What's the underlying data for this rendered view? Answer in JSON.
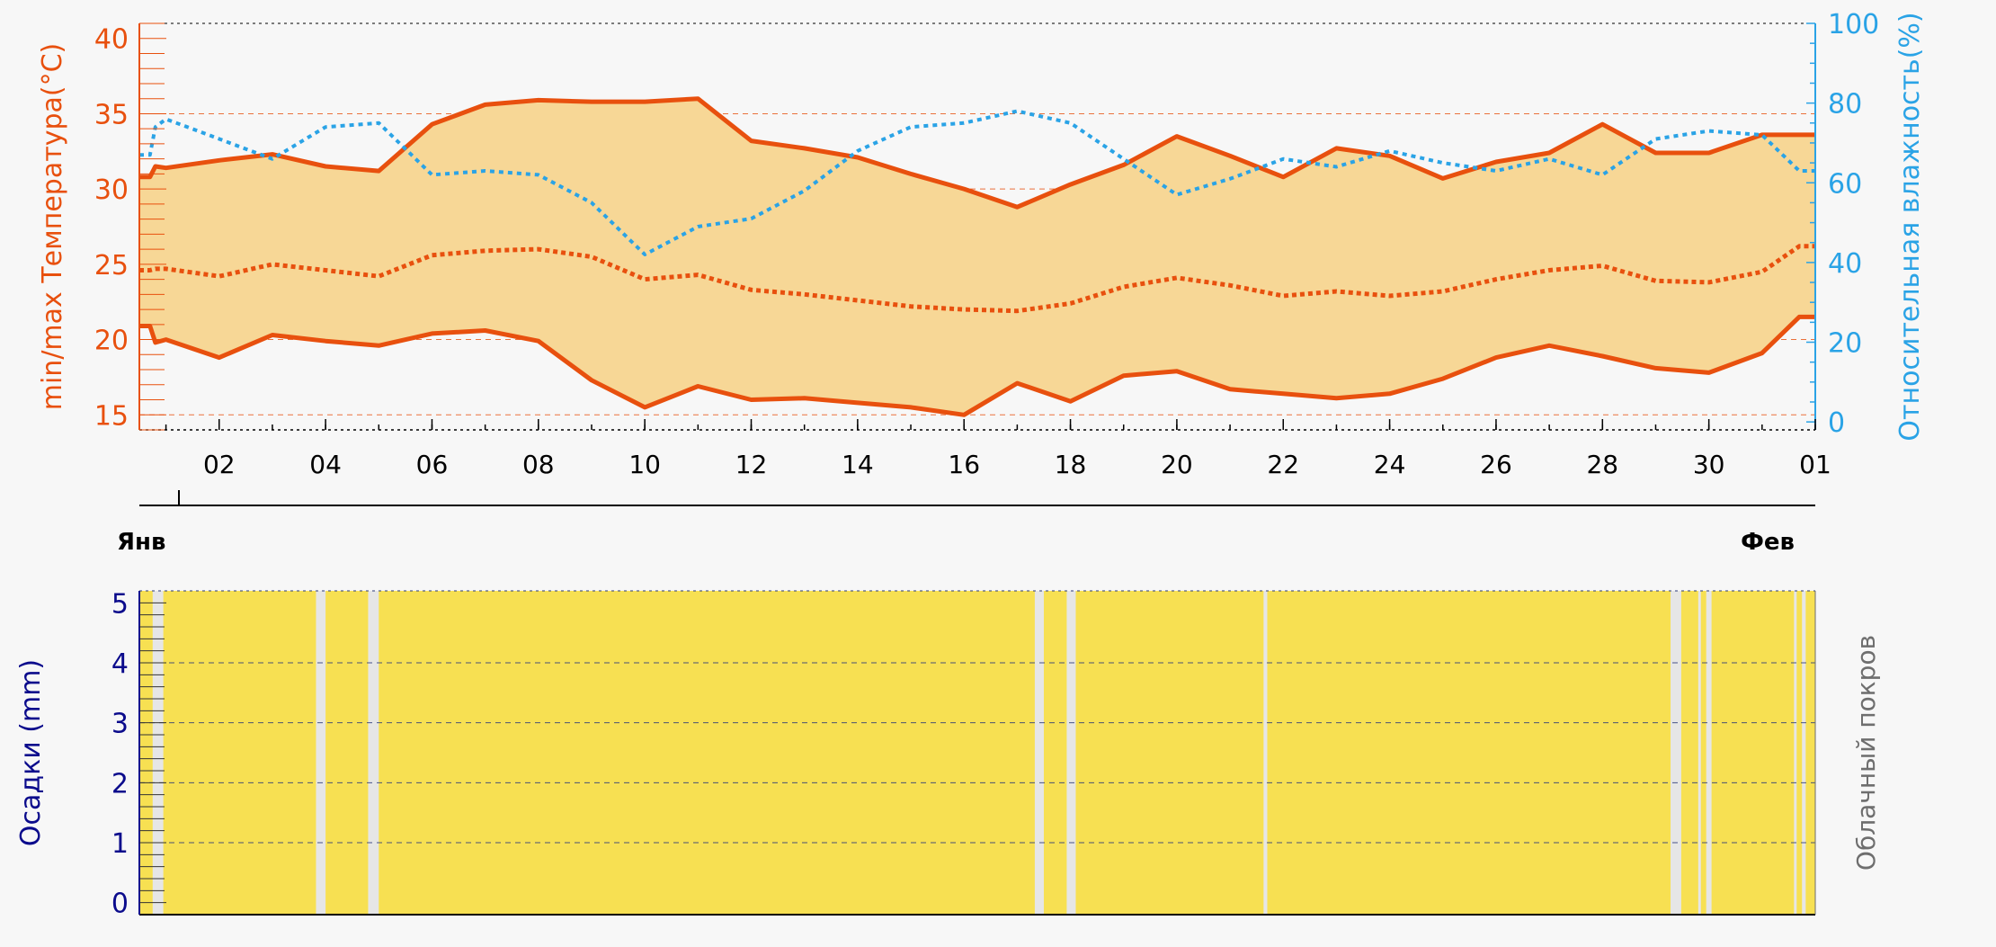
{
  "colors": {
    "temperature": "#e8500e",
    "temperature_fill": "#f7d796",
    "humidity": "#2aa3e6",
    "precipitation_axis": "#0b0b8c",
    "cloud_fill": "#f7e052",
    "clear_sky": "#e6e6e6",
    "cloud_axis_label": "#6e6e6e",
    "background": "#f7f7f7",
    "axis": "#000000"
  },
  "chart_data": [
    {
      "type": "line",
      "ylabel": "min/max Температура(°C)",
      "y2label": "Относительная влажность(%)",
      "ylim": [
        14,
        41
      ],
      "y2lim": [
        -2,
        100
      ],
      "yticks": [
        "15",
        "20",
        "25",
        "30",
        "35",
        "40"
      ],
      "y2ticks": [
        "0",
        "20",
        "40",
        "60",
        "80",
        "100"
      ],
      "xlim": [
        0.5,
        32.0
      ],
      "xticks": [
        "02",
        "04",
        "06",
        "08",
        "10",
        "12",
        "14",
        "16",
        "18",
        "20",
        "22",
        "24",
        "26",
        "28",
        "30",
        "01"
      ],
      "month_labels": [
        "Янв",
        "Фев"
      ],
      "grid": "horizontal dashed",
      "x": [
        0.5,
        0.7,
        0.8,
        1,
        2,
        3,
        4,
        5,
        6,
        7,
        8,
        9,
        10,
        11,
        12,
        13,
        14,
        15,
        16,
        17,
        18,
        19,
        20,
        21,
        22,
        23,
        24,
        25,
        26,
        27,
        28,
        29,
        30,
        31,
        31.7,
        32.0
      ],
      "series": [
        {
          "name": "",
          "role": "max temperature",
          "style": "solid",
          "values": [
            30.8,
            30.8,
            31.5,
            31.4,
            31.9,
            32.3,
            31.5,
            31.2,
            34.3,
            35.6,
            35.9,
            35.8,
            35.8,
            36.0,
            33.2,
            32.7,
            32.1,
            31.0,
            30.0,
            28.8,
            30.3,
            31.6,
            33.5,
            32.2,
            30.8,
            32.7,
            32.2,
            30.7,
            31.8,
            32.4,
            34.3,
            32.4,
            32.4,
            33.6,
            33.6,
            33.6
          ]
        },
        {
          "name": "",
          "role": "min temperature",
          "style": "solid",
          "values": [
            20.9,
            20.9,
            19.8,
            20.0,
            18.8,
            20.3,
            19.9,
            19.6,
            20.4,
            20.6,
            19.9,
            17.3,
            15.5,
            16.9,
            16.0,
            16.1,
            15.8,
            15.5,
            15.0,
            17.1,
            15.9,
            17.6,
            17.9,
            16.7,
            16.4,
            16.1,
            16.4,
            17.4,
            18.8,
            19.6,
            18.9,
            18.1,
            17.8,
            19.1,
            21.5,
            21.5
          ]
        },
        {
          "name": "",
          "role": "mean temperature",
          "style": "dotted",
          "values": [
            24.6,
            24.6,
            24.7,
            24.7,
            24.2,
            25.0,
            24.6,
            24.2,
            25.6,
            25.9,
            26.0,
            25.5,
            24.0,
            24.3,
            23.3,
            23.0,
            22.6,
            22.2,
            22.0,
            21.9,
            22.4,
            23.5,
            24.1,
            23.6,
            22.9,
            23.2,
            22.9,
            23.2,
            24.0,
            24.6,
            24.9,
            23.9,
            23.8,
            24.5,
            26.2,
            26.2
          ]
        },
        {
          "name": "",
          "role": "relative humidity (%)",
          "axis": "right",
          "style": "dotted",
          "values": [
            67,
            67,
            74,
            76,
            71,
            66,
            74,
            75,
            62,
            63,
            62,
            55,
            42,
            49,
            51,
            58,
            68,
            74,
            75,
            78,
            75,
            66,
            57,
            61,
            66,
            64,
            68,
            65,
            63,
            66,
            62,
            71,
            73,
            72,
            63,
            63
          ]
        }
      ]
    },
    {
      "type": "area",
      "ylabel": "Осадки (mm)",
      "y2label": "Облачный покров",
      "ylim": [
        -0.2,
        5.2
      ],
      "yticks": [
        "0",
        "1",
        "2",
        "3",
        "4",
        "5"
      ],
      "xlim": [
        0.5,
        32.0
      ],
      "grid": "horizontal dashed",
      "series": [
        {
          "name": "",
          "role": "precipitation (mm)",
          "values": [
            0,
            0,
            0,
            0,
            0,
            0,
            0,
            0,
            0,
            0,
            0,
            0,
            0,
            0,
            0,
            0,
            0,
            0,
            0,
            0,
            0,
            0,
            0,
            0,
            0,
            0,
            0,
            0,
            0,
            0,
            0,
            0
          ]
        }
      ],
      "clear_sky_intervals": [
        [
          0.75,
          0.95
        ],
        [
          3.82,
          4.0
        ],
        [
          4.8,
          5.0
        ],
        [
          17.33,
          17.5
        ],
        [
          17.93,
          18.1
        ],
        [
          21.63,
          21.7
        ],
        [
          29.28,
          29.48
        ],
        [
          29.8,
          29.85
        ],
        [
          29.95,
          30.05
        ],
        [
          31.6,
          31.65
        ],
        [
          31.75,
          31.82
        ]
      ]
    }
  ]
}
